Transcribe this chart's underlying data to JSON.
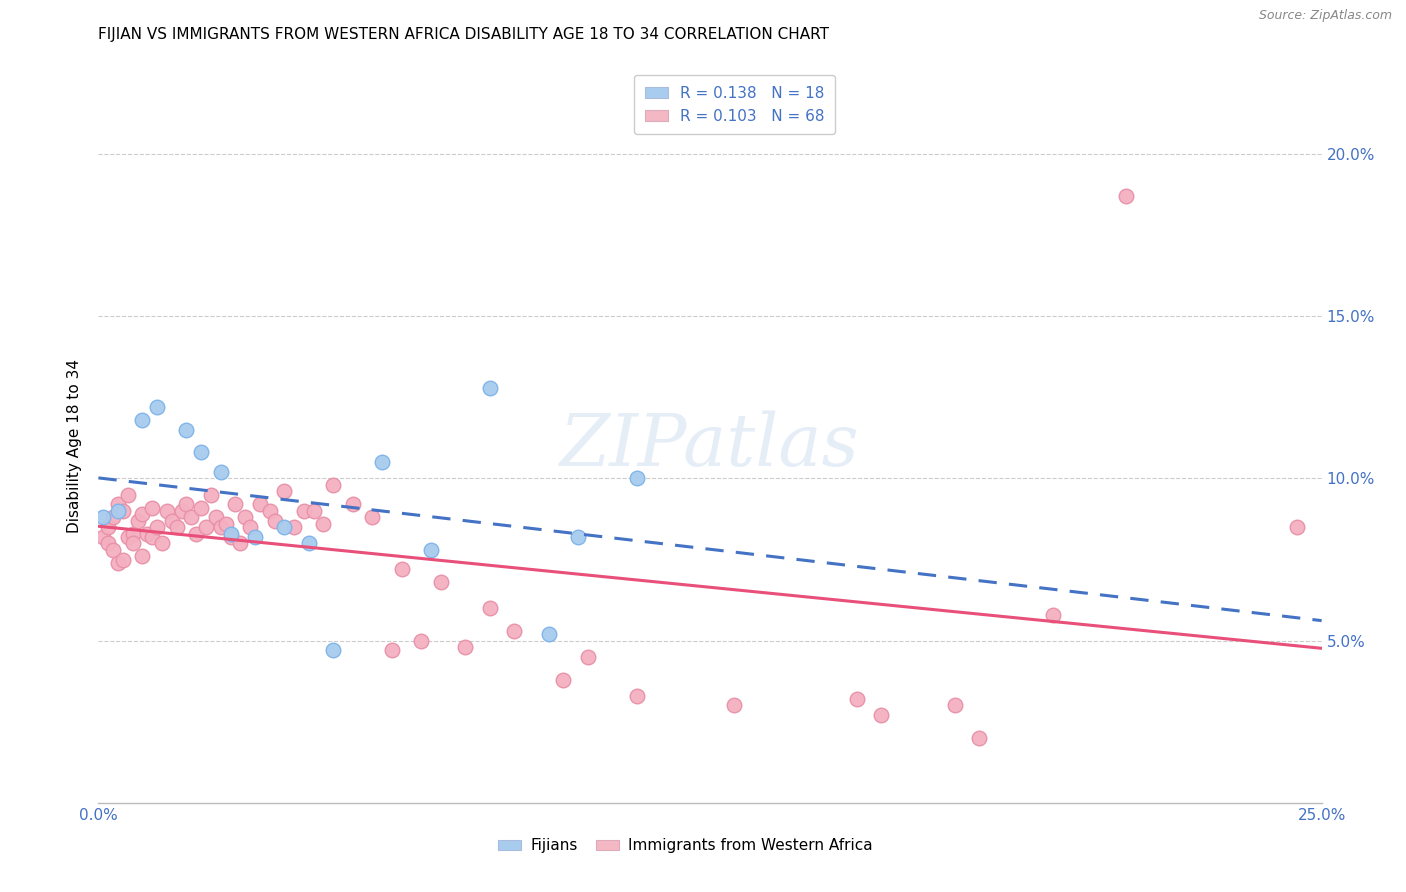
{
  "title": "FIJIAN VS IMMIGRANTS FROM WESTERN AFRICA DISABILITY AGE 18 TO 34 CORRELATION CHART",
  "source": "Source: ZipAtlas.com",
  "ylabel": "Disability Age 18 to 34",
  "xlim": [
    0.0,
    0.25
  ],
  "ylim": [
    0.0,
    0.22
  ],
  "ytick_vals": [
    0.05,
    0.1,
    0.15,
    0.2
  ],
  "ytick_labels": [
    "5.0%",
    "10.0%",
    "15.0%",
    "20.0%"
  ],
  "xtick_vals": [
    0.0,
    0.05,
    0.1,
    0.15,
    0.2,
    0.25
  ],
  "xtick_labels": [
    "0.0%",
    "",
    "",
    "",
    "",
    "25.0%"
  ],
  "fijian_color": "#A8CCEE",
  "immigrant_color": "#F4B0C0",
  "fijian_edge_color": "#7EB3E8",
  "immigrant_edge_color": "#E890A8",
  "fijian_line_color": "#4472C4",
  "immigrant_line_color": "#E8507A",
  "legend_box_fijian": "#A8CCEE",
  "legend_box_immigrant": "#F4B8C4",
  "fijian_R": 0.138,
  "fijian_N": 18,
  "immigrant_R": 0.103,
  "immigrant_N": 68,
  "watermark": "ZIPatlas",
  "background_color": "#FFFFFF",
  "grid_color": "#CCCCCC",
  "axis_color": "#4472C4",
  "fijian_x": [
    0.001,
    0.004,
    0.009,
    0.012,
    0.018,
    0.021,
    0.025,
    0.027,
    0.032,
    0.038,
    0.043,
    0.048,
    0.058,
    0.068,
    0.08,
    0.092,
    0.098,
    0.11
  ],
  "fijian_y": [
    0.088,
    0.09,
    0.118,
    0.122,
    0.115,
    0.108,
    0.102,
    0.083,
    0.082,
    0.085,
    0.08,
    0.047,
    0.105,
    0.078,
    0.128,
    0.052,
    0.082,
    0.1
  ],
  "immigrant_x": [
    0.001,
    0.002,
    0.002,
    0.003,
    0.003,
    0.004,
    0.004,
    0.005,
    0.005,
    0.006,
    0.006,
    0.007,
    0.007,
    0.008,
    0.009,
    0.009,
    0.01,
    0.011,
    0.011,
    0.012,
    0.013,
    0.014,
    0.015,
    0.016,
    0.017,
    0.018,
    0.019,
    0.02,
    0.021,
    0.022,
    0.023,
    0.024,
    0.025,
    0.026,
    0.027,
    0.028,
    0.029,
    0.03,
    0.031,
    0.033,
    0.035,
    0.036,
    0.038,
    0.04,
    0.042,
    0.044,
    0.046,
    0.048,
    0.052,
    0.056,
    0.06,
    0.062,
    0.066,
    0.07,
    0.075,
    0.08,
    0.085,
    0.095,
    0.1,
    0.11,
    0.13,
    0.155,
    0.16,
    0.175,
    0.18,
    0.195,
    0.21,
    0.245
  ],
  "immigrant_y": [
    0.082,
    0.08,
    0.085,
    0.078,
    0.088,
    0.074,
    0.092,
    0.075,
    0.09,
    0.082,
    0.095,
    0.083,
    0.08,
    0.087,
    0.076,
    0.089,
    0.083,
    0.082,
    0.091,
    0.085,
    0.08,
    0.09,
    0.087,
    0.085,
    0.09,
    0.092,
    0.088,
    0.083,
    0.091,
    0.085,
    0.095,
    0.088,
    0.085,
    0.086,
    0.082,
    0.092,
    0.08,
    0.088,
    0.085,
    0.092,
    0.09,
    0.087,
    0.096,
    0.085,
    0.09,
    0.09,
    0.086,
    0.098,
    0.092,
    0.088,
    0.047,
    0.072,
    0.05,
    0.068,
    0.048,
    0.06,
    0.053,
    0.038,
    0.045,
    0.033,
    0.03,
    0.032,
    0.027,
    0.03,
    0.02,
    0.058,
    0.187,
    0.085
  ]
}
